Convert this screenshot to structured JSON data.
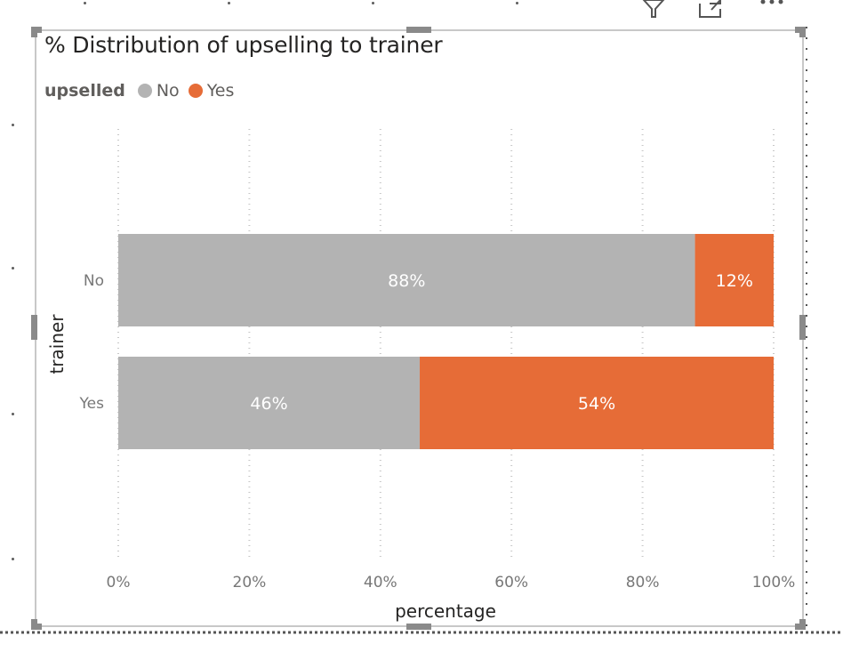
{
  "colors": {
    "no": "#b3b3b3",
    "yes": "#e66c37",
    "grid": "#c8c8c8"
  },
  "icons": [
    "filter-icon",
    "focus-mode-icon",
    "more-options-icon"
  ],
  "chart_data": {
    "type": "bar",
    "orientation": "horizontal",
    "stacked": "100%",
    "title": "% Distribution of upselling to trainer",
    "legend": {
      "title": "upselled",
      "position": "top-left",
      "items": [
        "No",
        "Yes"
      ]
    },
    "categories": [
      "No",
      "Yes"
    ],
    "series": [
      {
        "name": "No",
        "values": [
          88,
          46
        ],
        "labels": [
          "88%",
          "46%"
        ]
      },
      {
        "name": "Yes",
        "values": [
          12,
          54
        ],
        "labels": [
          "12%",
          "54%"
        ]
      }
    ],
    "xlabel": "percentage",
    "ylabel": "trainer",
    "xlim": [
      0,
      100
    ],
    "xticks": [
      "0%",
      "20%",
      "40%",
      "60%",
      "80%",
      "100%"
    ],
    "grid": true
  }
}
